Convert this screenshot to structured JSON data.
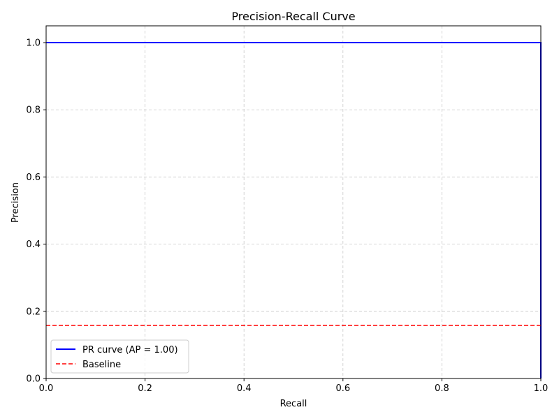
{
  "chart_data": {
    "type": "line",
    "title": "Precision-Recall Curve",
    "xlabel": "Recall",
    "ylabel": "Precision",
    "xlim": [
      0.0,
      1.0
    ],
    "ylim": [
      0.0,
      1.05
    ],
    "xticks": [
      0.0,
      0.2,
      0.4,
      0.6,
      0.8,
      1.0
    ],
    "yticks": [
      0.0,
      0.2,
      0.4,
      0.6,
      0.8,
      1.0
    ],
    "xtick_labels": [
      "0.0",
      "0.2",
      "0.4",
      "0.6",
      "0.8",
      "1.0"
    ],
    "ytick_labels": [
      "0.0",
      "0.2",
      "0.4",
      "0.6",
      "0.8",
      "1.0"
    ],
    "grid": true,
    "legend_position": "lower-left",
    "series": [
      {
        "name": "PR curve (AP = 1.00)",
        "color": "#0000ff",
        "style": "solid",
        "x": [
          0.0,
          1.0,
          1.0
        ],
        "y": [
          1.0,
          1.0,
          0.0
        ]
      },
      {
        "name": "Baseline",
        "color": "#ff0000",
        "style": "dashed",
        "x": [
          0.0,
          1.0
        ],
        "y": [
          0.158,
          0.158
        ]
      }
    ]
  }
}
